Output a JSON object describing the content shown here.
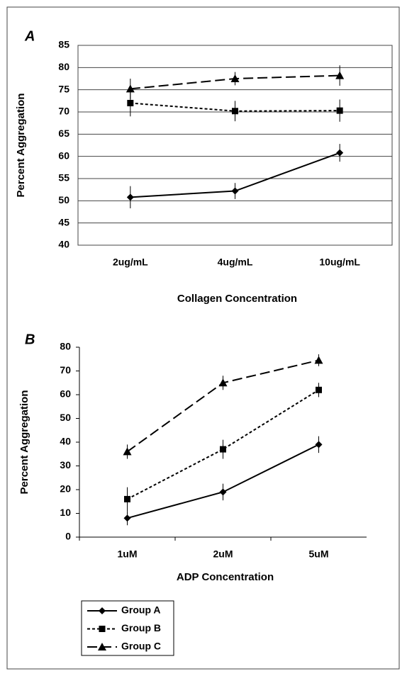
{
  "chart_data": [
    {
      "type": "line",
      "title": "A",
      "x_label": "Collagen Concentration",
      "y_label": "Percent Aggregation",
      "categories": [
        "2ug/mL",
        "4ug/mL",
        "10ug/mL"
      ],
      "ylim": [
        40,
        85
      ],
      "yticks": [
        40,
        45,
        50,
        55,
        60,
        65,
        70,
        75,
        80,
        85
      ],
      "grid": true,
      "legend": false,
      "series": [
        {
          "color": "#000000",
          "dash": "solid",
          "marker": "diamond",
          "values": [
            50.8,
            52.2,
            60.8
          ],
          "errors": [
            2.5,
            1.8,
            2.0
          ]
        },
        {
          "color": "#000000",
          "dash": "short",
          "marker": "square",
          "values": [
            72.0,
            70.2,
            70.3
          ],
          "errors": [
            3.0,
            2.3,
            2.5
          ]
        },
        {
          "color": "#000000",
          "dash": "long",
          "marker": "triangle",
          "values": [
            75.2,
            77.5,
            78.2
          ],
          "errors": [
            2.3,
            1.5,
            2.3
          ]
        }
      ]
    },
    {
      "type": "line",
      "title": "B",
      "x_label": "ADP Concentration",
      "y_label": "Percent Aggregation",
      "categories": [
        "1uM",
        "2uM",
        "5uM"
      ],
      "ylim": [
        0,
        80
      ],
      "yticks": [
        0,
        10,
        20,
        30,
        40,
        50,
        60,
        70,
        80
      ],
      "grid": false,
      "legend": true,
      "series": [
        {
          "name": "Group A",
          "color": "#000000",
          "dash": "solid",
          "marker": "diamond",
          "values": [
            8,
            19,
            39
          ],
          "errors": [
            3,
            3.5,
            3.5
          ]
        },
        {
          "name": "Group B",
          "color": "#000000",
          "dash": "short",
          "marker": "square",
          "values": [
            16,
            37,
            62
          ],
          "errors": [
            5,
            4,
            3
          ]
        },
        {
          "name": "Group C",
          "color": "#000000",
          "dash": "long",
          "marker": "triangle",
          "values": [
            36,
            65,
            74.5
          ],
          "errors": [
            3,
            3,
            2.5
          ]
        }
      ]
    }
  ]
}
